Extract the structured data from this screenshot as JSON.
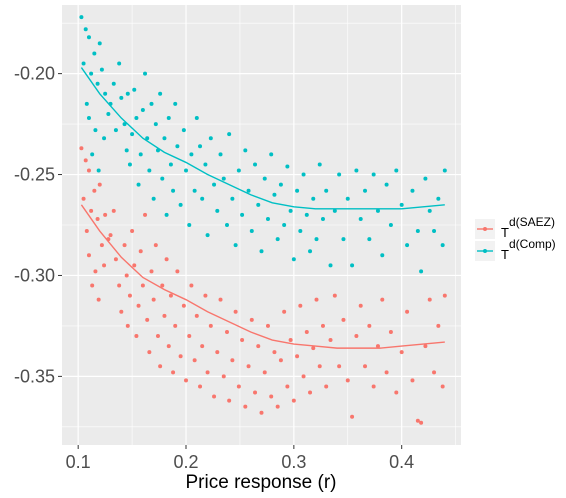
{
  "chart_data": {
    "type": "scatter",
    "xlabel": "Price response (r)",
    "ylabel": "",
    "xlim": [
      0.085,
      0.455
    ],
    "ylim": [
      -0.384,
      -0.166
    ],
    "x_ticks": [
      0.1,
      0.2,
      0.3,
      0.4
    ],
    "x_tick_labels": [
      "0.1",
      "0.2",
      "0.3",
      "0.4"
    ],
    "y_ticks": [
      -0.35,
      -0.3,
      -0.25,
      -0.2
    ],
    "y_tick_labels": [
      "-0.35",
      "-0.30",
      "-0.25",
      "-0.20"
    ],
    "grid": true,
    "legend_position": "right",
    "series": [
      {
        "name": "T d(Comp)",
        "legend_base": "T",
        "legend_sup": "d(Comp)",
        "color": "#00BFC4",
        "points": [
          [
            0.103,
            -0.172
          ],
          [
            0.107,
            -0.178
          ],
          [
            0.11,
            -0.182
          ],
          [
            0.105,
            -0.195
          ],
          [
            0.112,
            -0.2
          ],
          [
            0.108,
            -0.215
          ],
          [
            0.115,
            -0.19
          ],
          [
            0.118,
            -0.205
          ],
          [
            0.12,
            -0.185
          ],
          [
            0.122,
            -0.198
          ],
          [
            0.11,
            -0.222
          ],
          [
            0.116,
            -0.228
          ],
          [
            0.125,
            -0.21
          ],
          [
            0.128,
            -0.22
          ],
          [
            0.113,
            -0.24
          ],
          [
            0.119,
            -0.248
          ],
          [
            0.124,
            -0.232
          ],
          [
            0.13,
            -0.215
          ],
          [
            0.133,
            -0.205
          ],
          [
            0.135,
            -0.228
          ],
          [
            0.138,
            -0.195
          ],
          [
            0.14,
            -0.212
          ],
          [
            0.143,
            -0.225
          ],
          [
            0.145,
            -0.238
          ],
          [
            0.146,
            -0.21
          ],
          [
            0.148,
            -0.245
          ],
          [
            0.15,
            -0.23
          ],
          [
            0.152,
            -0.208
          ],
          [
            0.154,
            -0.222
          ],
          [
            0.156,
            -0.255
          ],
          [
            0.158,
            -0.24
          ],
          [
            0.16,
            -0.218
          ],
          [
            0.162,
            -0.2
          ],
          [
            0.164,
            -0.232
          ],
          [
            0.166,
            -0.248
          ],
          [
            0.168,
            -0.215
          ],
          [
            0.17,
            -0.262
          ],
          [
            0.172,
            -0.225
          ],
          [
            0.174,
            -0.238
          ],
          [
            0.176,
            -0.21
          ],
          [
            0.178,
            -0.252
          ],
          [
            0.18,
            -0.232
          ],
          [
            0.182,
            -0.27
          ],
          [
            0.184,
            -0.222
          ],
          [
            0.186,
            -0.245
          ],
          [
            0.188,
            -0.258
          ],
          [
            0.19,
            -0.215
          ],
          [
            0.192,
            -0.236
          ],
          [
            0.195,
            -0.265
          ],
          [
            0.198,
            -0.228
          ],
          [
            0.2,
            -0.248
          ],
          [
            0.203,
            -0.275
          ],
          [
            0.205,
            -0.24
          ],
          [
            0.208,
            -0.258
          ],
          [
            0.21,
            -0.222
          ],
          [
            0.213,
            -0.236
          ],
          [
            0.215,
            -0.262
          ],
          [
            0.218,
            -0.245
          ],
          [
            0.22,
            -0.28
          ],
          [
            0.223,
            -0.232
          ],
          [
            0.226,
            -0.255
          ],
          [
            0.229,
            -0.268
          ],
          [
            0.232,
            -0.24
          ],
          [
            0.235,
            -0.252
          ],
          [
            0.238,
            -0.275
          ],
          [
            0.24,
            -0.23
          ],
          [
            0.243,
            -0.262
          ],
          [
            0.246,
            -0.285
          ],
          [
            0.249,
            -0.248
          ],
          [
            0.252,
            -0.27
          ],
          [
            0.255,
            -0.238
          ],
          [
            0.258,
            -0.258
          ],
          [
            0.261,
            -0.278
          ],
          [
            0.264,
            -0.245
          ],
          [
            0.267,
            -0.265
          ],
          [
            0.27,
            -0.288
          ],
          [
            0.273,
            -0.252
          ],
          [
            0.276,
            -0.272
          ],
          [
            0.279,
            -0.24
          ],
          [
            0.282,
            -0.26
          ],
          [
            0.285,
            -0.282
          ],
          [
            0.288,
            -0.255
          ],
          [
            0.291,
            -0.275
          ],
          [
            0.294,
            -0.246
          ],
          [
            0.297,
            -0.268
          ],
          [
            0.3,
            -0.292
          ],
          [
            0.303,
            -0.258
          ],
          [
            0.306,
            -0.278
          ],
          [
            0.309,
            -0.25
          ],
          [
            0.312,
            -0.27
          ],
          [
            0.315,
            -0.288
          ],
          [
            0.318,
            -0.262
          ],
          [
            0.321,
            -0.282
          ],
          [
            0.324,
            -0.245
          ],
          [
            0.327,
            -0.272
          ],
          [
            0.33,
            -0.258
          ],
          [
            0.334,
            -0.295
          ],
          [
            0.338,
            -0.268
          ],
          [
            0.342,
            -0.25
          ],
          [
            0.346,
            -0.282
          ],
          [
            0.35,
            -0.262
          ],
          [
            0.354,
            -0.295
          ],
          [
            0.358,
            -0.248
          ],
          [
            0.362,
            -0.272
          ],
          [
            0.366,
            -0.258
          ],
          [
            0.37,
            -0.282
          ],
          [
            0.374,
            -0.25
          ],
          [
            0.378,
            -0.268
          ],
          [
            0.382,
            -0.29
          ],
          [
            0.386,
            -0.255
          ],
          [
            0.39,
            -0.275
          ],
          [
            0.395,
            -0.248
          ],
          [
            0.4,
            -0.265
          ],
          [
            0.405,
            -0.285
          ],
          [
            0.41,
            -0.258
          ],
          [
            0.415,
            -0.278
          ],
          [
            0.418,
            -0.298
          ],
          [
            0.422,
            -0.252
          ],
          [
            0.426,
            -0.268
          ],
          [
            0.43,
            -0.278
          ],
          [
            0.434,
            -0.262
          ],
          [
            0.438,
            -0.285
          ],
          [
            0.44,
            -0.248
          ]
        ],
        "smooth": [
          [
            0.103,
            -0.197
          ],
          [
            0.12,
            -0.21
          ],
          [
            0.14,
            -0.222
          ],
          [
            0.16,
            -0.232
          ],
          [
            0.18,
            -0.239
          ],
          [
            0.2,
            -0.244
          ],
          [
            0.22,
            -0.25
          ],
          [
            0.24,
            -0.255
          ],
          [
            0.26,
            -0.26
          ],
          [
            0.28,
            -0.264
          ],
          [
            0.3,
            -0.266
          ],
          [
            0.32,
            -0.267
          ],
          [
            0.34,
            -0.267
          ],
          [
            0.36,
            -0.267
          ],
          [
            0.38,
            -0.267
          ],
          [
            0.4,
            -0.267
          ],
          [
            0.42,
            -0.266
          ],
          [
            0.44,
            -0.265
          ]
        ]
      },
      {
        "name": "T d(SAEZ)",
        "legend_base": "T",
        "legend_sup": "d(SAEZ)",
        "color": "#F8766D",
        "points": [
          [
            0.103,
            -0.237
          ],
          [
            0.107,
            -0.243
          ],
          [
            0.11,
            -0.248
          ],
          [
            0.105,
            -0.262
          ],
          [
            0.112,
            -0.268
          ],
          [
            0.108,
            -0.278
          ],
          [
            0.115,
            -0.258
          ],
          [
            0.118,
            -0.272
          ],
          [
            0.12,
            -0.255
          ],
          [
            0.122,
            -0.285
          ],
          [
            0.11,
            -0.29
          ],
          [
            0.116,
            -0.298
          ],
          [
            0.125,
            -0.27
          ],
          [
            0.128,
            -0.282
          ],
          [
            0.113,
            -0.305
          ],
          [
            0.119,
            -0.312
          ],
          [
            0.124,
            -0.295
          ],
          [
            0.13,
            -0.28
          ],
          [
            0.133,
            -0.268
          ],
          [
            0.135,
            -0.292
          ],
          [
            0.138,
            -0.305
          ],
          [
            0.14,
            -0.318
          ],
          [
            0.143,
            -0.285
          ],
          [
            0.145,
            -0.3
          ],
          [
            0.146,
            -0.325
          ],
          [
            0.148,
            -0.31
          ],
          [
            0.15,
            -0.278
          ],
          [
            0.152,
            -0.295
          ],
          [
            0.154,
            -0.33
          ],
          [
            0.156,
            -0.315
          ],
          [
            0.158,
            -0.288
          ],
          [
            0.16,
            -0.305
          ],
          [
            0.162,
            -0.27
          ],
          [
            0.164,
            -0.322
          ],
          [
            0.166,
            -0.338
          ],
          [
            0.168,
            -0.298
          ],
          [
            0.17,
            -0.312
          ],
          [
            0.172,
            -0.285
          ],
          [
            0.174,
            -0.33
          ],
          [
            0.176,
            -0.345
          ],
          [
            0.178,
            -0.305
          ],
          [
            0.18,
            -0.32
          ],
          [
            0.182,
            -0.292
          ],
          [
            0.184,
            -0.335
          ],
          [
            0.186,
            -0.31
          ],
          [
            0.188,
            -0.348
          ],
          [
            0.19,
            -0.325
          ],
          [
            0.192,
            -0.298
          ],
          [
            0.195,
            -0.34
          ],
          [
            0.198,
            -0.315
          ],
          [
            0.2,
            -0.352
          ],
          [
            0.203,
            -0.33
          ],
          [
            0.205,
            -0.305
          ],
          [
            0.208,
            -0.342
          ],
          [
            0.21,
            -0.32
          ],
          [
            0.213,
            -0.355
          ],
          [
            0.215,
            -0.335
          ],
          [
            0.218,
            -0.31
          ],
          [
            0.22,
            -0.348
          ],
          [
            0.223,
            -0.325
          ],
          [
            0.226,
            -0.36
          ],
          [
            0.229,
            -0.338
          ],
          [
            0.232,
            -0.312
          ],
          [
            0.235,
            -0.35
          ],
          [
            0.238,
            -0.328
          ],
          [
            0.24,
            -0.362
          ],
          [
            0.243,
            -0.342
          ],
          [
            0.246,
            -0.318
          ],
          [
            0.249,
            -0.355
          ],
          [
            0.252,
            -0.332
          ],
          [
            0.255,
            -0.365
          ],
          [
            0.258,
            -0.345
          ],
          [
            0.261,
            -0.322
          ],
          [
            0.264,
            -0.358
          ],
          [
            0.267,
            -0.335
          ],
          [
            0.27,
            -0.368
          ],
          [
            0.273,
            -0.348
          ],
          [
            0.276,
            -0.325
          ],
          [
            0.279,
            -0.36
          ],
          [
            0.282,
            -0.338
          ],
          [
            0.285,
            -0.365
          ],
          [
            0.288,
            -0.342
          ],
          [
            0.291,
            -0.318
          ],
          [
            0.294,
            -0.355
          ],
          [
            0.297,
            -0.332
          ],
          [
            0.3,
            -0.362
          ],
          [
            0.303,
            -0.34
          ],
          [
            0.306,
            -0.315
          ],
          [
            0.309,
            -0.35
          ],
          [
            0.312,
            -0.328
          ],
          [
            0.315,
            -0.358
          ],
          [
            0.318,
            -0.336
          ],
          [
            0.321,
            -0.312
          ],
          [
            0.324,
            -0.345
          ],
          [
            0.327,
            -0.325
          ],
          [
            0.33,
            -0.355
          ],
          [
            0.334,
            -0.332
          ],
          [
            0.338,
            -0.31
          ],
          [
            0.342,
            -0.345
          ],
          [
            0.346,
            -0.322
          ],
          [
            0.35,
            -0.352
          ],
          [
            0.354,
            -0.37
          ],
          [
            0.358,
            -0.33
          ],
          [
            0.362,
            -0.315
          ],
          [
            0.366,
            -0.345
          ],
          [
            0.37,
            -0.325
          ],
          [
            0.374,
            -0.355
          ],
          [
            0.378,
            -0.335
          ],
          [
            0.382,
            -0.312
          ],
          [
            0.386,
            -0.348
          ],
          [
            0.39,
            -0.328
          ],
          [
            0.395,
            -0.358
          ],
          [
            0.4,
            -0.338
          ],
          [
            0.405,
            -0.318
          ],
          [
            0.41,
            -0.352
          ],
          [
            0.415,
            -0.372
          ],
          [
            0.418,
            -0.373
          ],
          [
            0.422,
            -0.335
          ],
          [
            0.426,
            -0.312
          ],
          [
            0.43,
            -0.348
          ],
          [
            0.434,
            -0.325
          ],
          [
            0.438,
            -0.355
          ],
          [
            0.44,
            -0.31
          ]
        ],
        "smooth": [
          [
            0.103,
            -0.265
          ],
          [
            0.12,
            -0.278
          ],
          [
            0.14,
            -0.291
          ],
          [
            0.16,
            -0.301
          ],
          [
            0.18,
            -0.307
          ],
          [
            0.2,
            -0.312
          ],
          [
            0.22,
            -0.318
          ],
          [
            0.24,
            -0.323
          ],
          [
            0.26,
            -0.328
          ],
          [
            0.28,
            -0.332
          ],
          [
            0.3,
            -0.334
          ],
          [
            0.32,
            -0.335
          ],
          [
            0.34,
            -0.336
          ],
          [
            0.36,
            -0.336
          ],
          [
            0.38,
            -0.336
          ],
          [
            0.4,
            -0.335
          ],
          [
            0.42,
            -0.334
          ],
          [
            0.44,
            -0.333
          ]
        ]
      }
    ]
  }
}
